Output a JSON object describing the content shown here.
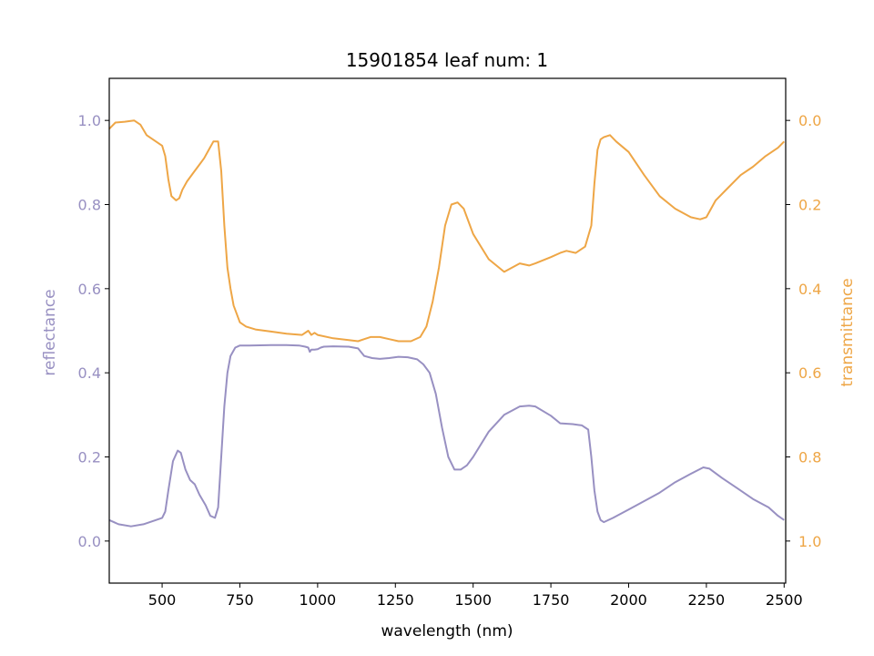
{
  "chart_data": {
    "type": "line",
    "title": "15901854 leaf num: 1",
    "xlabel": "wavelength (nm)",
    "ylabel_left": "reflectance",
    "ylabel_right": "transmittance",
    "xlim": [
      330,
      2505
    ],
    "ylim_left": [
      -0.1,
      1.1
    ],
    "ylim_right": [
      1.1,
      -0.1
    ],
    "right_axis_inverted": true,
    "grid": false,
    "x_ticks": [
      "500",
      "750",
      "1000",
      "1250",
      "1500",
      "1750",
      "2000",
      "2250",
      "2500"
    ],
    "y_ticks_left": [
      "0.0",
      "0.2",
      "0.4",
      "0.6",
      "0.8",
      "1.0"
    ],
    "y_ticks_right": [
      "0.0",
      "0.2",
      "0.4",
      "0.6",
      "0.8",
      "1.0"
    ],
    "colors": {
      "reflectance": "#9890c2",
      "transmittance": "#eea646"
    },
    "series": [
      {
        "name": "reflectance",
        "axis": "left",
        "color": "#9890c2",
        "x": [
          330,
          360,
          400,
          440,
          480,
          500,
          510,
          520,
          535,
          550,
          560,
          575,
          590,
          605,
          620,
          640,
          655,
          670,
          680,
          690,
          700,
          710,
          720,
          735,
          750,
          780,
          850,
          900,
          940,
          960,
          970,
          975,
          980,
          990,
          1000,
          1010,
          1020,
          1050,
          1100,
          1130,
          1150,
          1175,
          1200,
          1230,
          1260,
          1290,
          1320,
          1340,
          1360,
          1380,
          1400,
          1420,
          1440,
          1460,
          1480,
          1500,
          1550,
          1600,
          1650,
          1680,
          1700,
          1750,
          1780,
          1820,
          1850,
          1870,
          1880,
          1890,
          1900,
          1910,
          1920,
          1950,
          2000,
          2050,
          2100,
          2150,
          2200,
          2240,
          2260,
          2300,
          2350,
          2400,
          2450,
          2480,
          2500
        ],
        "values": [
          0.05,
          0.04,
          0.035,
          0.04,
          0.05,
          0.055,
          0.07,
          0.12,
          0.19,
          0.215,
          0.21,
          0.17,
          0.145,
          0.135,
          0.11,
          0.085,
          0.06,
          0.055,
          0.08,
          0.2,
          0.32,
          0.4,
          0.44,
          0.46,
          0.465,
          0.465,
          0.466,
          0.466,
          0.465,
          0.462,
          0.46,
          0.45,
          0.455,
          0.455,
          0.456,
          0.46,
          0.462,
          0.463,
          0.462,
          0.458,
          0.44,
          0.435,
          0.433,
          0.435,
          0.438,
          0.437,
          0.432,
          0.42,
          0.4,
          0.35,
          0.27,
          0.2,
          0.17,
          0.17,
          0.18,
          0.2,
          0.26,
          0.3,
          0.32,
          0.322,
          0.32,
          0.298,
          0.28,
          0.278,
          0.275,
          0.265,
          0.2,
          0.12,
          0.07,
          0.05,
          0.045,
          0.055,
          0.075,
          0.095,
          0.115,
          0.14,
          0.16,
          0.175,
          0.172,
          0.15,
          0.125,
          0.1,
          0.08,
          0.06,
          0.05
        ]
      },
      {
        "name": "transmittance",
        "axis": "right",
        "color": "#eea646",
        "x": [
          330,
          350,
          380,
          410,
          430,
          450,
          470,
          500,
          510,
          520,
          530,
          545,
          555,
          565,
          580,
          600,
          620,
          635,
          650,
          665,
          680,
          690,
          700,
          710,
          720,
          730,
          750,
          770,
          800,
          850,
          900,
          950,
          970,
          980,
          990,
          1000,
          1050,
          1100,
          1130,
          1150,
          1170,
          1200,
          1230,
          1260,
          1300,
          1330,
          1350,
          1370,
          1390,
          1410,
          1430,
          1450,
          1470,
          1500,
          1550,
          1600,
          1650,
          1680,
          1700,
          1750,
          1780,
          1800,
          1830,
          1860,
          1880,
          1890,
          1900,
          1910,
          1920,
          1940,
          1960,
          2000,
          2050,
          2100,
          2150,
          2200,
          2230,
          2250,
          2280,
          2320,
          2360,
          2400,
          2440,
          2480,
          2500
        ],
        "values": [
          0.02,
          0.005,
          0.003,
          0.0,
          0.01,
          0.035,
          0.045,
          0.06,
          0.085,
          0.14,
          0.18,
          0.19,
          0.185,
          0.165,
          0.145,
          0.125,
          0.105,
          0.09,
          0.07,
          0.05,
          0.05,
          0.12,
          0.25,
          0.35,
          0.4,
          0.44,
          0.48,
          0.49,
          0.497,
          0.502,
          0.507,
          0.51,
          0.5,
          0.51,
          0.505,
          0.51,
          0.518,
          0.522,
          0.525,
          0.52,
          0.515,
          0.515,
          0.52,
          0.525,
          0.525,
          0.515,
          0.49,
          0.43,
          0.35,
          0.25,
          0.2,
          0.195,
          0.21,
          0.27,
          0.33,
          0.36,
          0.34,
          0.345,
          0.34,
          0.325,
          0.315,
          0.31,
          0.315,
          0.3,
          0.25,
          0.15,
          0.07,
          0.045,
          0.04,
          0.035,
          0.05,
          0.075,
          0.13,
          0.18,
          0.21,
          0.23,
          0.235,
          0.23,
          0.19,
          0.16,
          0.13,
          0.11,
          0.085,
          0.065,
          0.05
        ]
      }
    ]
  }
}
